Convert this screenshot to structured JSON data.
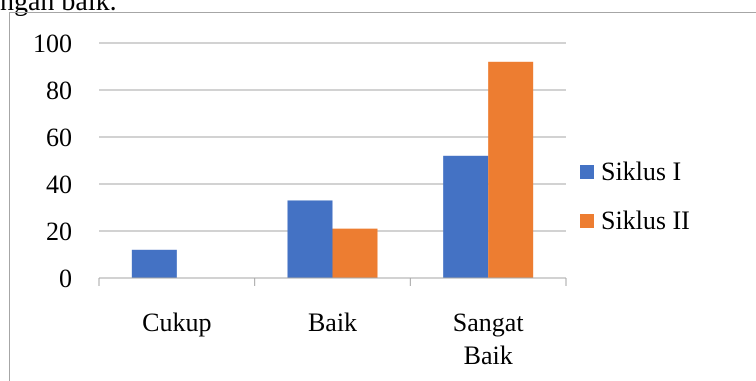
{
  "page_text": {
    "top_fragment": "ngan baik."
  },
  "chart_data": {
    "type": "bar",
    "categories": [
      "Cukup",
      "Baik",
      "Sangat Baik"
    ],
    "category_lines": [
      [
        "Cukup"
      ],
      [
        "Baik"
      ],
      [
        "Sangat",
        "Baik"
      ]
    ],
    "series": [
      {
        "name": "Siklus I",
        "values": [
          12,
          33,
          52
        ],
        "color": "#4472c4"
      },
      {
        "name": "Siklus II",
        "values": [
          0,
          21,
          92
        ],
        "color": "#ed7d31"
      }
    ],
    "yticks": [
      0,
      20,
      40,
      60,
      80,
      100
    ],
    "ylim": [
      0,
      100
    ],
    "title": "",
    "xlabel": "",
    "ylabel": "",
    "grid": true,
    "legend_position": "right"
  }
}
